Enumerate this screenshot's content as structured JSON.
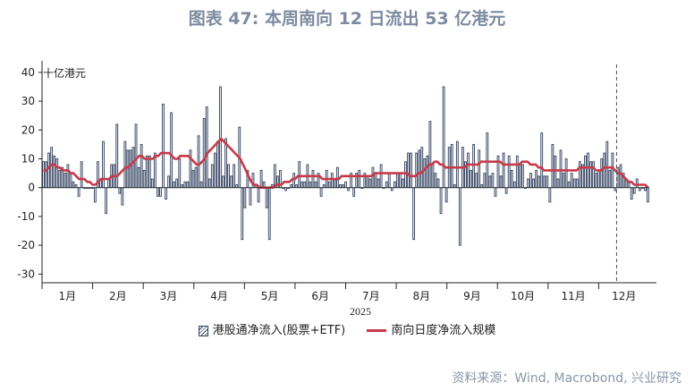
{
  "title": "图表 47: 本周南向 12 日流出 53 亿港元",
  "source": "资料来源：Wind, Macrobond, 兴业研究",
  "chart_data": {
    "type": "bar+line",
    "unit_label": "十亿港元",
    "xlabel": "2025",
    "ylim": [
      -33,
      44
    ],
    "yticks": [
      40,
      30,
      20,
      10,
      0,
      -10,
      -20,
      -30
    ],
    "months": [
      "1月",
      "2月",
      "3月",
      "4月",
      "5月",
      "6月",
      "7月",
      "8月",
      "9月",
      "10月",
      "11月",
      "12月"
    ],
    "legend_position": "bottom",
    "colors": {
      "bars": "#33415e",
      "line": "#c83a4a",
      "title": "#7d8aa0",
      "source": "#8a96a8",
      "marker": "#555555"
    },
    "series": [
      {
        "name": "港股通净流入(股票+ETF)",
        "kind": "bar",
        "values": [
          9,
          9,
          12,
          14,
          11,
          10,
          6,
          7,
          5,
          8,
          5,
          2,
          1,
          -3,
          9,
          0,
          0,
          0,
          0,
          -5,
          9,
          3,
          16,
          -9,
          3,
          8,
          8,
          22,
          -2,
          -6,
          16,
          13,
          13,
          14,
          22,
          7,
          15,
          6,
          11,
          11,
          3,
          12,
          -3,
          -3,
          29,
          -4,
          4,
          26,
          2,
          3,
          10,
          1,
          2,
          2,
          13,
          6,
          7,
          18,
          2,
          24,
          28,
          3,
          8,
          12,
          16,
          35,
          4,
          17,
          8,
          4,
          8,
          1,
          21,
          -18,
          -7,
          6,
          -6,
          5,
          1,
          -5,
          6,
          2,
          -7,
          -18,
          1,
          8,
          4,
          6,
          0,
          -1,
          0,
          1,
          5,
          1,
          9,
          2,
          2,
          8,
          2,
          6,
          2,
          5,
          -3,
          1,
          6,
          2,
          5,
          3,
          7,
          1,
          1,
          2,
          -1,
          5,
          -3,
          5,
          6,
          0,
          5,
          4,
          3,
          7,
          5,
          3,
          8,
          0,
          2,
          5,
          -1,
          2,
          5,
          5,
          3,
          9,
          12,
          12,
          -18,
          12,
          13,
          14,
          10,
          11,
          23,
          8,
          5,
          3,
          -9,
          35,
          -5,
          14,
          15,
          1,
          16,
          -20,
          14,
          9,
          12,
          6,
          15,
          5,
          13,
          1,
          5,
          19,
          4,
          5,
          -3,
          11,
          4,
          12,
          -2,
          11,
          6,
          2,
          11,
          8,
          8,
          0,
          3,
          5,
          3,
          6,
          4,
          19,
          4,
          4,
          -5,
          15,
          11,
          3,
          13,
          5,
          10,
          2,
          5,
          3,
          3,
          9,
          8,
          11,
          12,
          9,
          9,
          5,
          6,
          10,
          12,
          16,
          6,
          12,
          -1,
          7,
          8,
          5,
          3,
          2,
          -4,
          -2,
          3,
          -1,
          0,
          -1,
          -5
        ]
      },
      {
        "name": "南向日度净流入规模",
        "kind": "line",
        "values": [
          6,
          6,
          7,
          8,
          8,
          7,
          7,
          6,
          6,
          6,
          5,
          5,
          4,
          3,
          3,
          3,
          2,
          2,
          1,
          1,
          2,
          3,
          3,
          3,
          3,
          4,
          4,
          4,
          5,
          6,
          7,
          7,
          8,
          9,
          10,
          11,
          11,
          10,
          10,
          10,
          10,
          11,
          11,
          12,
          12,
          12,
          12,
          11,
          10,
          10,
          11,
          11,
          11,
          11,
          10,
          9,
          8,
          8,
          9,
          10,
          12,
          13,
          14,
          15,
          16,
          17,
          16,
          15,
          14,
          13,
          12,
          11,
          10,
          8,
          6,
          4,
          2,
          1,
          1,
          0,
          0,
          0,
          0,
          0,
          0,
          1,
          1,
          1,
          2,
          2,
          2,
          3,
          3,
          4,
          4,
          4,
          4,
          4,
          4,
          4,
          4,
          4,
          3,
          3,
          3,
          3,
          3,
          3,
          3,
          4,
          4,
          4,
          4,
          4,
          4,
          4,
          4,
          4,
          4,
          4,
          4,
          5,
          5,
          5,
          5,
          5,
          5,
          5,
          5,
          5,
          5,
          5,
          5,
          5,
          4,
          4,
          4,
          5,
          5,
          6,
          7,
          8,
          8,
          9,
          9,
          8,
          8,
          7,
          7,
          7,
          7,
          7,
          7,
          7,
          7,
          8,
          8,
          8,
          8,
          8,
          9,
          9,
          9,
          9,
          9,
          9,
          9,
          9,
          8,
          8,
          8,
          8,
          8,
          8,
          8,
          9,
          9,
          9,
          8,
          8,
          8,
          7,
          7,
          6,
          6,
          6,
          6,
          6,
          6,
          6,
          6,
          6,
          6,
          6,
          6,
          6,
          7,
          7,
          7,
          7,
          7,
          7,
          6,
          6,
          6,
          7,
          7,
          7,
          7,
          6,
          5,
          5,
          4,
          3,
          2,
          2,
          1,
          1,
          1,
          1,
          1,
          0
        ]
      }
    ]
  }
}
